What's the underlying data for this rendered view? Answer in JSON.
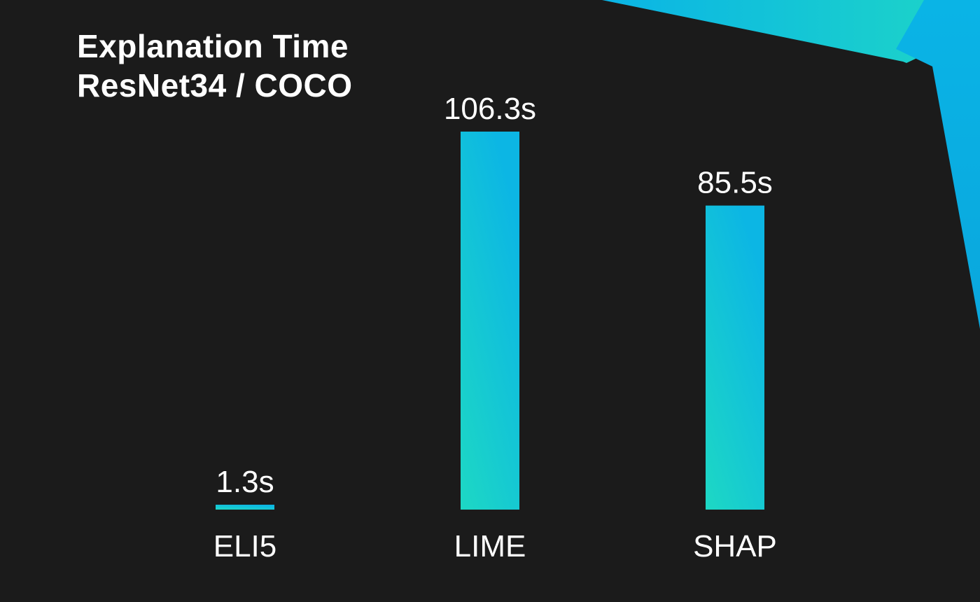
{
  "chart_data": {
    "type": "bar",
    "title": "Explanation Time",
    "subtitle": "ResNet34 / COCO",
    "categories": [
      "ELI5",
      "LIME",
      "SHAP"
    ],
    "values": [
      1.3,
      106.3,
      85.5
    ],
    "value_labels": [
      "1.3s",
      "106.3s",
      "85.5s"
    ],
    "unit": "s",
    "ylim": [
      0,
      106.3
    ],
    "grid": false,
    "legend": "none",
    "bar_gradient": [
      "#1dd8c4",
      "#0cb6e4"
    ],
    "background": "#1b1b1b",
    "accent_colors": [
      "#1ed6c6",
      "#0ab4e6"
    ]
  }
}
